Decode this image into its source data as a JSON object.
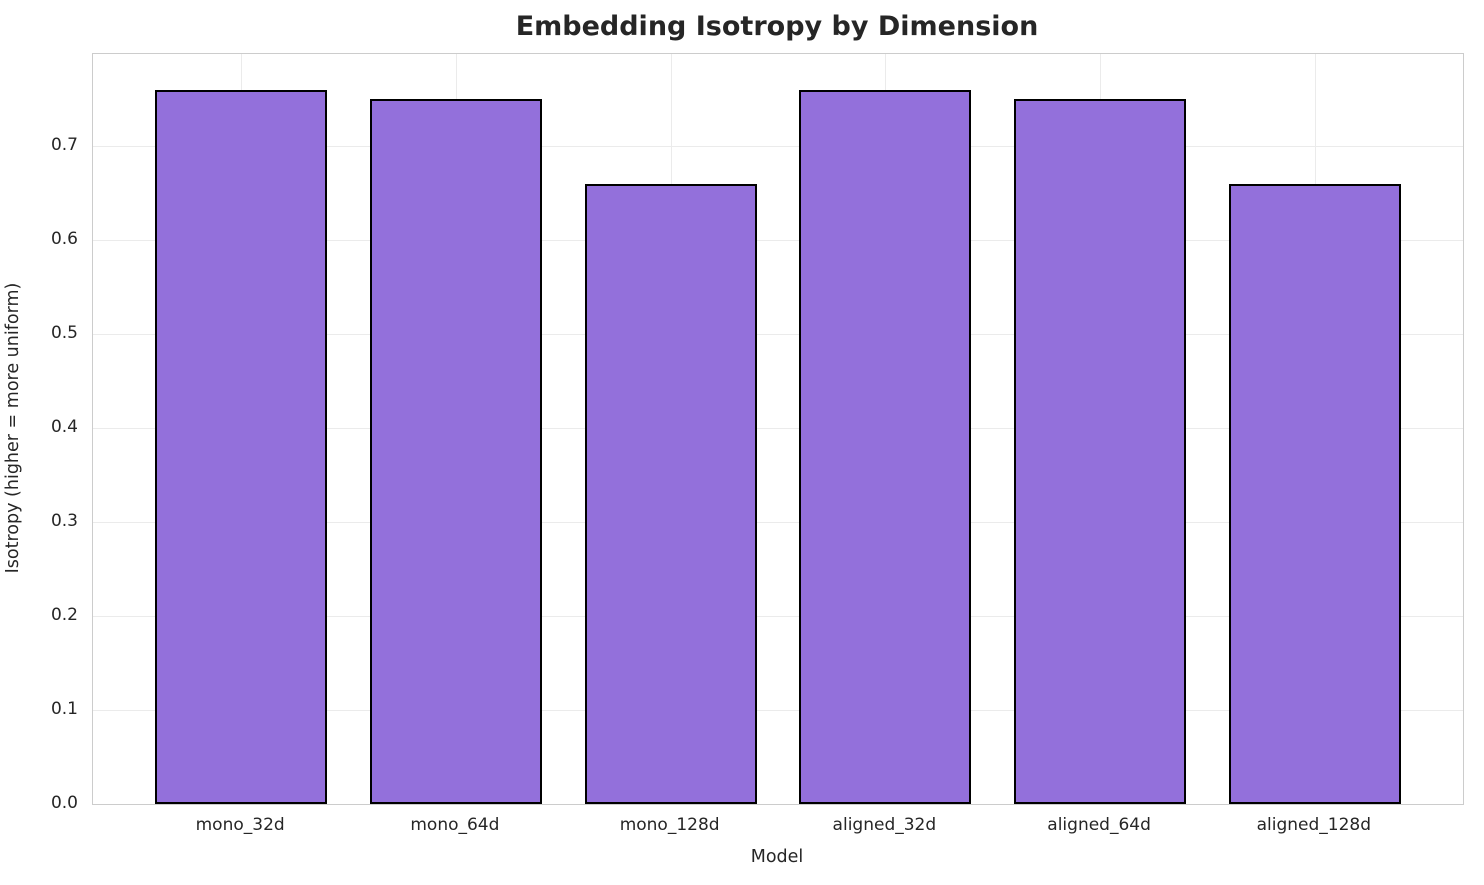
{
  "chart_data": {
    "type": "bar",
    "title": "Embedding Isotropy by Dimension",
    "xlabel": "Model",
    "ylabel": "Isotropy (higher = more uniform)",
    "categories": [
      "mono_32d",
      "mono_64d",
      "mono_128d",
      "aligned_32d",
      "aligned_64d",
      "aligned_128d"
    ],
    "values": [
      0.76,
      0.75,
      0.66,
      0.76,
      0.75,
      0.66
    ],
    "ylim": [
      0,
      0.798
    ],
    "yticks": [
      0.0,
      0.1,
      0.2,
      0.3,
      0.4,
      0.5,
      0.6,
      0.7
    ],
    "ytick_labels": [
      "0.0",
      "0.1",
      "0.2",
      "0.3",
      "0.4",
      "0.5",
      "0.6",
      "0.7"
    ],
    "grid": "on",
    "legend": "none",
    "bar_width_fraction": 0.8,
    "colors": {
      "bar_fill": "#9370DB",
      "bar_edge": "#000000",
      "grid": "#ebebeb",
      "spine": "#cccccc",
      "text": "#262626",
      "background": "#ffffff"
    }
  }
}
